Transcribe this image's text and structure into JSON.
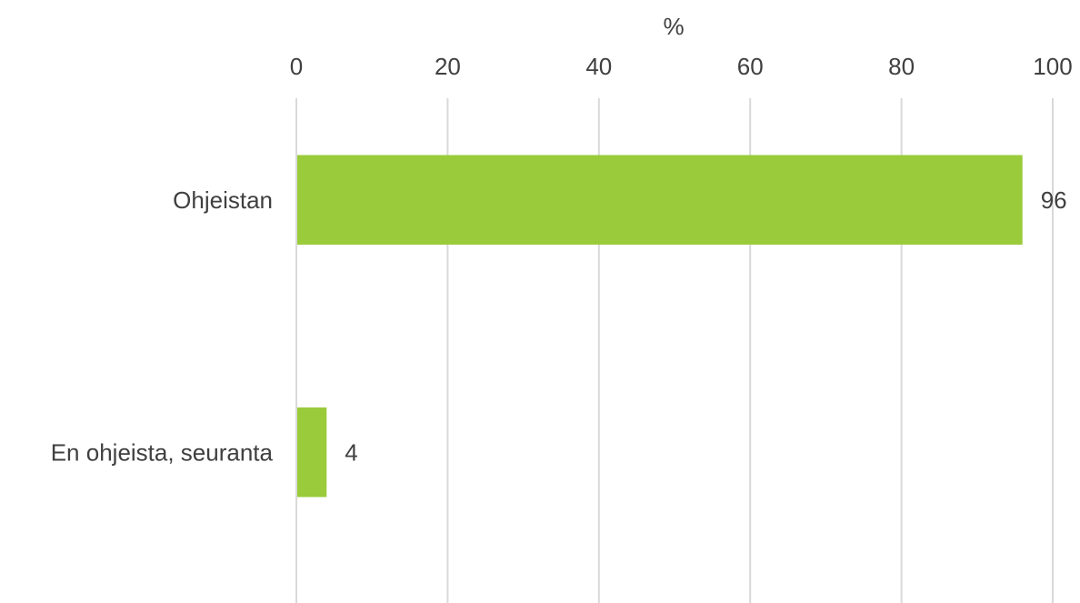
{
  "chart_data": {
    "type": "bar",
    "orientation": "horizontal",
    "xlabel": "%",
    "ylabel": "",
    "xlim": [
      0,
      100
    ],
    "x_ticks": [
      0,
      20,
      40,
      60,
      80,
      100
    ],
    "x_axis_position": "top",
    "grid": true,
    "legend": "none",
    "categories": [
      "Ohjeistan",
      "En ohjeista, seuranta"
    ],
    "values": [
      96,
      4
    ],
    "data_labels": [
      "96",
      "4"
    ],
    "bar_color": "#9ACB3B",
    "gridline_color": "#D9D9D9",
    "text_color": "#404040"
  }
}
